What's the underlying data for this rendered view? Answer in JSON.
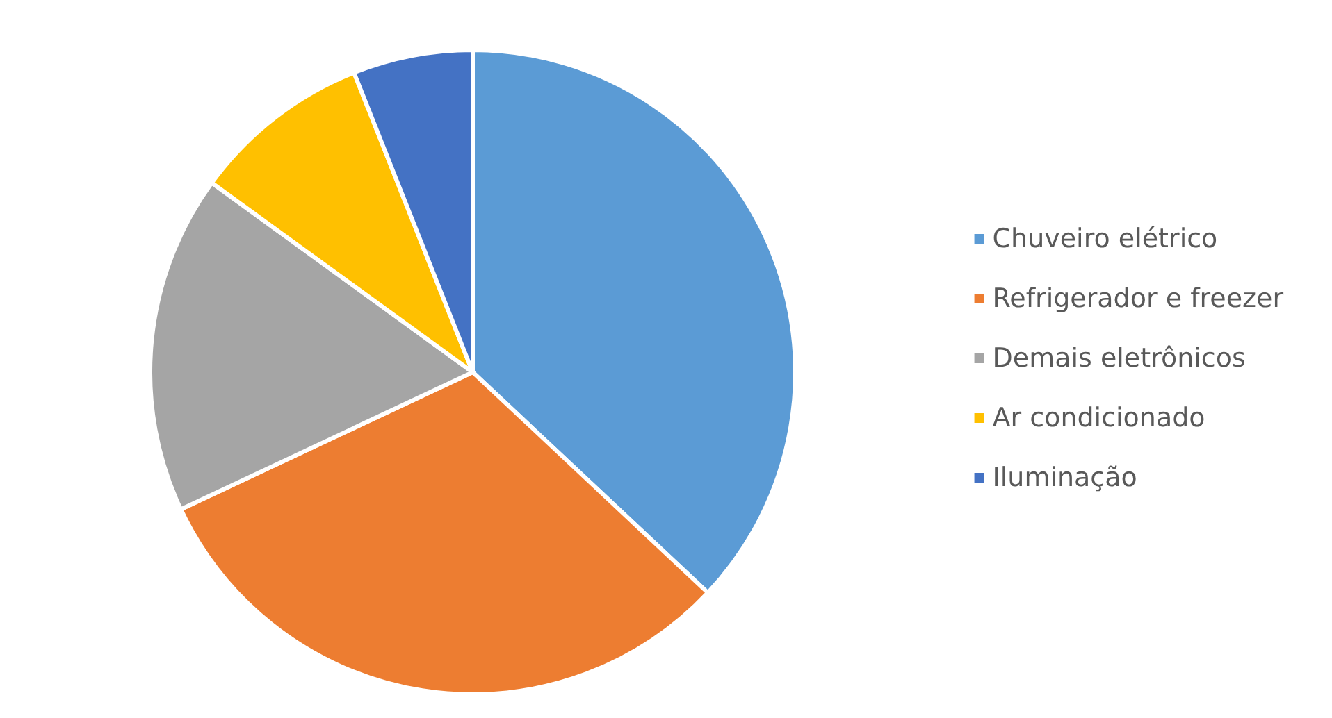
{
  "chart_data": {
    "type": "pie",
    "categories": [
      "Chuveiro elétrico",
      "Refrigerador e freezer",
      "Demais eletrônicos",
      "Ar condicionado",
      "Iluminação"
    ],
    "values": [
      37,
      31,
      17,
      9,
      6
    ],
    "colors": [
      "#5b9bd5",
      "#ed7d31",
      "#a5a5a5",
      "#ffc000",
      "#4472c4"
    ],
    "legend": "right"
  }
}
